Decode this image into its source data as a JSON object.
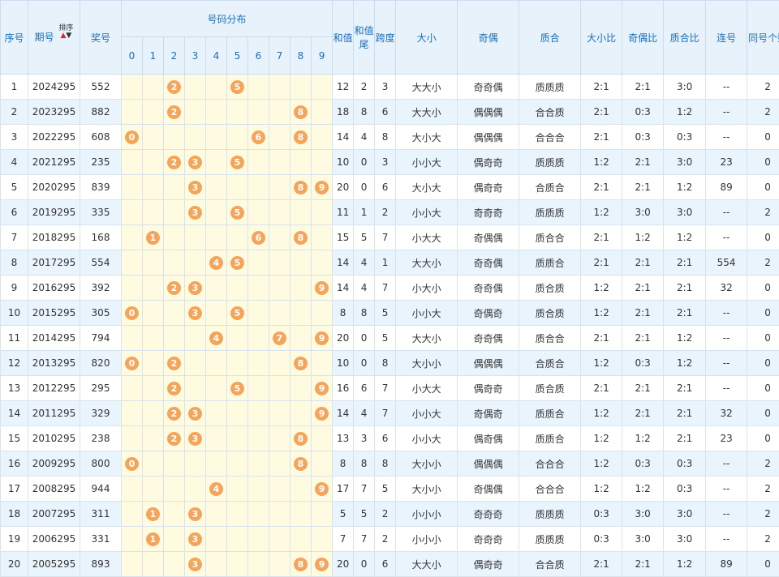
{
  "headers": {
    "seq": "序号",
    "period": "期号",
    "sort_label": "排序",
    "prize": "奖号",
    "distribution": "号码分布",
    "digits": [
      "0",
      "1",
      "2",
      "3",
      "4",
      "5",
      "6",
      "7",
      "8",
      "9"
    ],
    "sum": "和值",
    "sum_tail": "和值尾",
    "span": "跨度",
    "size": "大小",
    "parity": "奇偶",
    "prime": "质合",
    "size_ratio": "大小比",
    "parity_ratio": "奇偶比",
    "prime_ratio": "质合比",
    "consecutive": "连号",
    "same_count": "同号个数"
  },
  "colors": {
    "ball": "#f3a55c",
    "header_text": "#1a6fb5",
    "digit_bg": "#fffbe0",
    "row_alt": "#e9f4fd"
  },
  "rows": [
    {
      "seq": "1",
      "period": "2024295",
      "prize": "552",
      "sum": "12",
      "tail": "2",
      "span": "3",
      "size": "大大小",
      "parity": "奇奇偶",
      "prime": "质质质",
      "size_ratio": "2:1",
      "parity_ratio": "2:1",
      "prime_ratio": "3:0",
      "consecutive": "--",
      "same": "2"
    },
    {
      "seq": "2",
      "period": "2023295",
      "prize": "882",
      "sum": "18",
      "tail": "8",
      "span": "6",
      "size": "大大小",
      "parity": "偶偶偶",
      "prime": "合合质",
      "size_ratio": "2:1",
      "parity_ratio": "0:3",
      "prime_ratio": "1:2",
      "consecutive": "--",
      "same": "2"
    },
    {
      "seq": "3",
      "period": "2022295",
      "prize": "608",
      "sum": "14",
      "tail": "4",
      "span": "8",
      "size": "大小大",
      "parity": "偶偶偶",
      "prime": "合合合",
      "size_ratio": "2:1",
      "parity_ratio": "0:3",
      "prime_ratio": "0:3",
      "consecutive": "--",
      "same": "0"
    },
    {
      "seq": "4",
      "period": "2021295",
      "prize": "235",
      "sum": "10",
      "tail": "0",
      "span": "3",
      "size": "小小大",
      "parity": "偶奇奇",
      "prime": "质质质",
      "size_ratio": "1:2",
      "parity_ratio": "2:1",
      "prime_ratio": "3:0",
      "consecutive": "23",
      "same": "0"
    },
    {
      "seq": "5",
      "period": "2020295",
      "prize": "839",
      "sum": "20",
      "tail": "0",
      "span": "6",
      "size": "大小大",
      "parity": "偶奇奇",
      "prime": "合质合",
      "size_ratio": "2:1",
      "parity_ratio": "2:1",
      "prime_ratio": "1:2",
      "consecutive": "89",
      "same": "0"
    },
    {
      "seq": "6",
      "period": "2019295",
      "prize": "335",
      "sum": "11",
      "tail": "1",
      "span": "2",
      "size": "小小大",
      "parity": "奇奇奇",
      "prime": "质质质",
      "size_ratio": "1:2",
      "parity_ratio": "3:0",
      "prime_ratio": "3:0",
      "consecutive": "--",
      "same": "2"
    },
    {
      "seq": "7",
      "period": "2018295",
      "prize": "168",
      "sum": "15",
      "tail": "5",
      "span": "7",
      "size": "小大大",
      "parity": "奇偶偶",
      "prime": "质合合",
      "size_ratio": "2:1",
      "parity_ratio": "1:2",
      "prime_ratio": "1:2",
      "consecutive": "--",
      "same": "0"
    },
    {
      "seq": "8",
      "period": "2017295",
      "prize": "554",
      "sum": "14",
      "tail": "4",
      "span": "1",
      "size": "大大小",
      "parity": "奇奇偶",
      "prime": "质质合",
      "size_ratio": "2:1",
      "parity_ratio": "2:1",
      "prime_ratio": "2:1",
      "consecutive": "554",
      "same": "2"
    },
    {
      "seq": "9",
      "period": "2016295",
      "prize": "392",
      "sum": "14",
      "tail": "4",
      "span": "7",
      "size": "小大小",
      "parity": "奇奇偶",
      "prime": "质合质",
      "size_ratio": "1:2",
      "parity_ratio": "2:1",
      "prime_ratio": "2:1",
      "consecutive": "32",
      "same": "0"
    },
    {
      "seq": "10",
      "period": "2015295",
      "prize": "305",
      "sum": "8",
      "tail": "8",
      "span": "5",
      "size": "小小大",
      "parity": "奇偶奇",
      "prime": "质合质",
      "size_ratio": "1:2",
      "parity_ratio": "2:1",
      "prime_ratio": "2:1",
      "consecutive": "--",
      "same": "0"
    },
    {
      "seq": "11",
      "period": "2014295",
      "prize": "794",
      "sum": "20",
      "tail": "0",
      "span": "5",
      "size": "大大小",
      "parity": "奇奇偶",
      "prime": "质合合",
      "size_ratio": "2:1",
      "parity_ratio": "2:1",
      "prime_ratio": "1:2",
      "consecutive": "--",
      "same": "0"
    },
    {
      "seq": "12",
      "period": "2013295",
      "prize": "820",
      "sum": "10",
      "tail": "0",
      "span": "8",
      "size": "大小小",
      "parity": "偶偶偶",
      "prime": "合质合",
      "size_ratio": "1:2",
      "parity_ratio": "0:3",
      "prime_ratio": "1:2",
      "consecutive": "--",
      "same": "0"
    },
    {
      "seq": "13",
      "period": "2012295",
      "prize": "295",
      "sum": "16",
      "tail": "6",
      "span": "7",
      "size": "小大大",
      "parity": "偶奇奇",
      "prime": "质合质",
      "size_ratio": "2:1",
      "parity_ratio": "2:1",
      "prime_ratio": "2:1",
      "consecutive": "--",
      "same": "0"
    },
    {
      "seq": "14",
      "period": "2011295",
      "prize": "329",
      "sum": "14",
      "tail": "4",
      "span": "7",
      "size": "小小大",
      "parity": "奇偶奇",
      "prime": "质质合",
      "size_ratio": "1:2",
      "parity_ratio": "2:1",
      "prime_ratio": "2:1",
      "consecutive": "32",
      "same": "0"
    },
    {
      "seq": "15",
      "period": "2010295",
      "prize": "238",
      "sum": "13",
      "tail": "3",
      "span": "6",
      "size": "小小大",
      "parity": "偶奇偶",
      "prime": "质质合",
      "size_ratio": "1:2",
      "parity_ratio": "1:2",
      "prime_ratio": "2:1",
      "consecutive": "23",
      "same": "0"
    },
    {
      "seq": "16",
      "period": "2009295",
      "prize": "800",
      "sum": "8",
      "tail": "8",
      "span": "8",
      "size": "大小小",
      "parity": "偶偶偶",
      "prime": "合合合",
      "size_ratio": "1:2",
      "parity_ratio": "0:3",
      "prime_ratio": "0:3",
      "consecutive": "--",
      "same": "2"
    },
    {
      "seq": "17",
      "period": "2008295",
      "prize": "944",
      "sum": "17",
      "tail": "7",
      "span": "5",
      "size": "大小小",
      "parity": "奇偶偶",
      "prime": "合合合",
      "size_ratio": "1:2",
      "parity_ratio": "1:2",
      "prime_ratio": "0:3",
      "consecutive": "--",
      "same": "2"
    },
    {
      "seq": "18",
      "period": "2007295",
      "prize": "311",
      "sum": "5",
      "tail": "5",
      "span": "2",
      "size": "小小小",
      "parity": "奇奇奇",
      "prime": "质质质",
      "size_ratio": "0:3",
      "parity_ratio": "3:0",
      "prime_ratio": "3:0",
      "consecutive": "--",
      "same": "2"
    },
    {
      "seq": "19",
      "period": "2006295",
      "prize": "331",
      "sum": "7",
      "tail": "7",
      "span": "2",
      "size": "小小小",
      "parity": "奇奇奇",
      "prime": "质质质",
      "size_ratio": "0:3",
      "parity_ratio": "3:0",
      "prime_ratio": "3:0",
      "consecutive": "--",
      "same": "2"
    },
    {
      "seq": "20",
      "period": "2005295",
      "prize": "893",
      "sum": "20",
      "tail": "0",
      "span": "6",
      "size": "大大小",
      "parity": "偶奇奇",
      "prime": "合合质",
      "size_ratio": "2:1",
      "parity_ratio": "2:1",
      "prime_ratio": "1:2",
      "consecutive": "89",
      "same": "0"
    }
  ]
}
